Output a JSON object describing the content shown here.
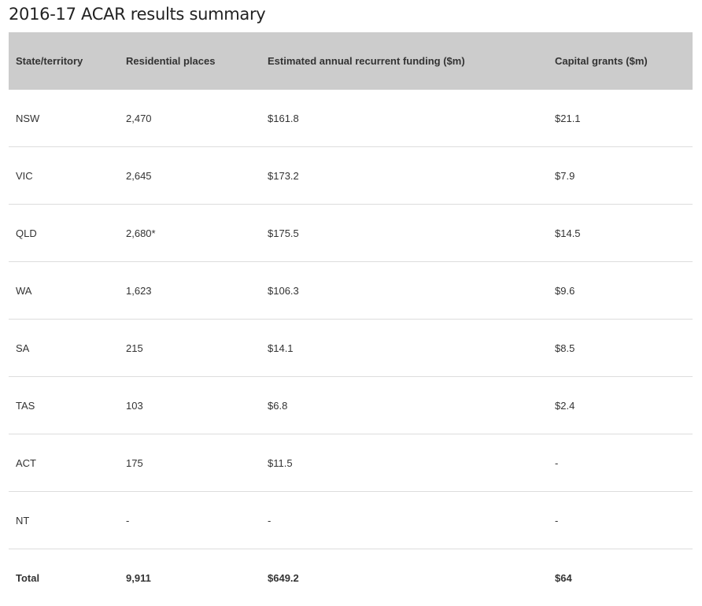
{
  "title": "2016-17 ACAR results summary",
  "table": {
    "headers": [
      "State/territory",
      "Residential places",
      "Estimated annual recurrent funding ($m)",
      "Capital grants ($m)"
    ],
    "rows": [
      [
        "NSW",
        "2,470",
        "$161.8",
        "$21.1"
      ],
      [
        "VIC",
        "2,645",
        "$173.2",
        "$7.9"
      ],
      [
        "QLD",
        "2,680*",
        "$175.5",
        "$14.5"
      ],
      [
        "WA",
        "1,623",
        "$106.3",
        "$9.6"
      ],
      [
        "SA",
        "215",
        "$14.1",
        "$8.5"
      ],
      [
        "TAS",
        "103",
        "$6.8",
        "$2.4"
      ],
      [
        "ACT",
        "175",
        "$11.5",
        "-"
      ],
      [
        "NT",
        "-",
        "-",
        "-"
      ]
    ],
    "total": [
      "Total",
      "9,911",
      "$649.2",
      "$64"
    ]
  },
  "colors": {
    "header_bg": "#cccccc",
    "divider": "#dddddd",
    "text": "#333333"
  }
}
